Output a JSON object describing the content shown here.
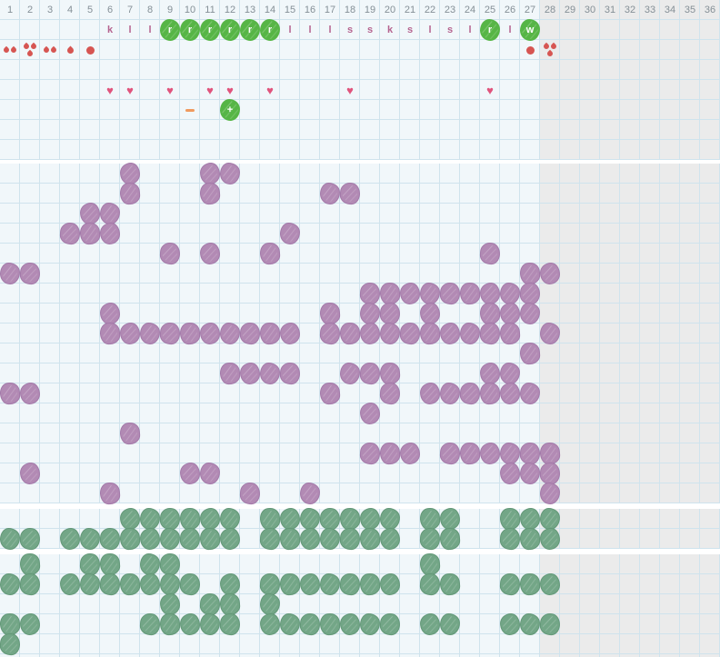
{
  "header": {
    "columns": [
      "1",
      "2",
      "3",
      "4",
      "5",
      "6",
      "7",
      "8",
      "9",
      "10",
      "11",
      "12",
      "13",
      "14",
      "15",
      "16",
      "17",
      "18",
      "19",
      "20",
      "21",
      "22",
      "23",
      "24",
      "25",
      "26",
      "27",
      "28",
      "29",
      "30",
      "31",
      "32",
      "33",
      "34",
      "35",
      "36"
    ]
  },
  "grid": {
    "total_columns": 36,
    "inactive_from_column": 28
  },
  "colors": {
    "cell_background": "#f1f7fa",
    "grid_line": "#cfe3ed",
    "inactive_background": "#ebebeb",
    "header_text": "#848f96",
    "letter_text": "#b5638f",
    "bright_green_sticker": "#56b546",
    "purple_blob": "#b28ab4",
    "purple_blob_border": "#a379a9",
    "sage_green_blob": "#73a687",
    "sage_green_blob_border": "#639878",
    "heart_pink": "#e0547c",
    "blood_red": "#d65552",
    "dash_orange": "#f09a5e",
    "separator": "#ffffff"
  },
  "top_section": {
    "letter_cells": [
      {
        "col": 6,
        "kind": "letter",
        "text": "k"
      },
      {
        "col": 7,
        "kind": "letter",
        "text": "l"
      },
      {
        "col": 8,
        "kind": "letter",
        "text": "l"
      },
      {
        "col": 9,
        "kind": "sticker",
        "text": "r"
      },
      {
        "col": 10,
        "kind": "sticker",
        "text": "r"
      },
      {
        "col": 11,
        "kind": "sticker",
        "text": "r"
      },
      {
        "col": 12,
        "kind": "sticker",
        "text": "r"
      },
      {
        "col": 13,
        "kind": "sticker",
        "text": "r"
      },
      {
        "col": 14,
        "kind": "sticker",
        "text": "r"
      },
      {
        "col": 15,
        "kind": "letter",
        "text": "l"
      },
      {
        "col": 16,
        "kind": "letter",
        "text": "l"
      },
      {
        "col": 17,
        "kind": "letter",
        "text": "l"
      },
      {
        "col": 18,
        "kind": "letter",
        "text": "s"
      },
      {
        "col": 19,
        "kind": "letter",
        "text": "s"
      },
      {
        "col": 20,
        "kind": "letter",
        "text": "k"
      },
      {
        "col": 21,
        "kind": "letter",
        "text": "s"
      },
      {
        "col": 22,
        "kind": "letter",
        "text": "l"
      },
      {
        "col": 23,
        "kind": "letter",
        "text": "s"
      },
      {
        "col": 24,
        "kind": "letter",
        "text": "l"
      },
      {
        "col": 25,
        "kind": "sticker",
        "text": "r"
      },
      {
        "col": 26,
        "kind": "letter",
        "text": "l"
      },
      {
        "col": 27,
        "kind": "sticker",
        "text": "w"
      }
    ],
    "flow_cells": [
      {
        "col": 1,
        "icon": "drops-2"
      },
      {
        "col": 2,
        "icon": "drops-3"
      },
      {
        "col": 3,
        "icon": "drops-2"
      },
      {
        "col": 4,
        "icon": "drop-1"
      },
      {
        "col": 5,
        "icon": "dot"
      },
      {
        "col": 27,
        "icon": "dot"
      },
      {
        "col": 28,
        "icon": "drops-3"
      }
    ],
    "heart_cols": [
      6,
      7,
      9,
      11,
      12,
      14,
      18,
      25
    ],
    "note_cells": [
      {
        "col": 10,
        "icon": "dash"
      },
      {
        "col": 12,
        "icon": "sticker-plus",
        "text": "+"
      }
    ]
  },
  "purple_section": {
    "rows": [
      [
        7,
        11,
        12
      ],
      [
        7,
        11,
        17,
        18
      ],
      [
        5,
        6
      ],
      [
        4,
        5,
        6,
        15
      ],
      [
        9,
        11,
        14,
        25
      ],
      [
        1,
        2,
        27,
        28
      ],
      [
        19,
        20,
        21,
        22,
        23,
        24,
        25,
        26,
        27
      ],
      [
        6,
        17,
        19,
        20,
        22,
        25,
        26,
        27
      ],
      [
        6,
        7,
        8,
        9,
        10,
        11,
        12,
        13,
        14,
        15,
        17,
        18,
        19,
        20,
        21,
        22,
        23,
        24,
        25,
        26,
        28
      ],
      [
        27
      ],
      [
        12,
        13,
        14,
        15,
        18,
        19,
        20,
        25,
        26
      ],
      [
        1,
        2,
        17,
        20,
        22,
        23,
        24,
        25,
        26,
        27
      ],
      [
        19
      ],
      [
        7
      ],
      [
        19,
        20,
        21,
        23,
        24,
        25,
        26,
        27,
        28
      ],
      [
        2,
        10,
        11,
        26,
        27,
        28
      ],
      [
        6,
        13,
        16,
        28
      ]
    ]
  },
  "green_section_1": {
    "rows": [
      [
        7,
        8,
        9,
        10,
        11,
        12,
        14,
        15,
        16,
        17,
        18,
        19,
        20,
        22,
        23,
        26,
        27,
        28
      ],
      [
        1,
        2,
        4,
        5,
        6,
        7,
        8,
        9,
        10,
        11,
        12,
        14,
        15,
        16,
        17,
        18,
        19,
        20,
        22,
        23,
        26,
        27,
        28
      ]
    ]
  },
  "green_section_2": {
    "rows": [
      [
        2,
        5,
        6,
        8,
        9,
        22
      ],
      [
        1,
        2,
        4,
        5,
        6,
        7,
        8,
        9,
        10,
        12,
        14,
        15,
        16,
        17,
        18,
        19,
        20,
        22,
        23,
        26,
        27,
        28
      ],
      [
        9,
        11,
        12,
        14
      ],
      [
        1,
        2,
        8,
        9,
        10,
        11,
        12,
        14,
        15,
        16,
        17,
        18,
        19,
        20,
        22,
        23,
        26,
        27,
        28
      ],
      [
        1
      ]
    ]
  }
}
